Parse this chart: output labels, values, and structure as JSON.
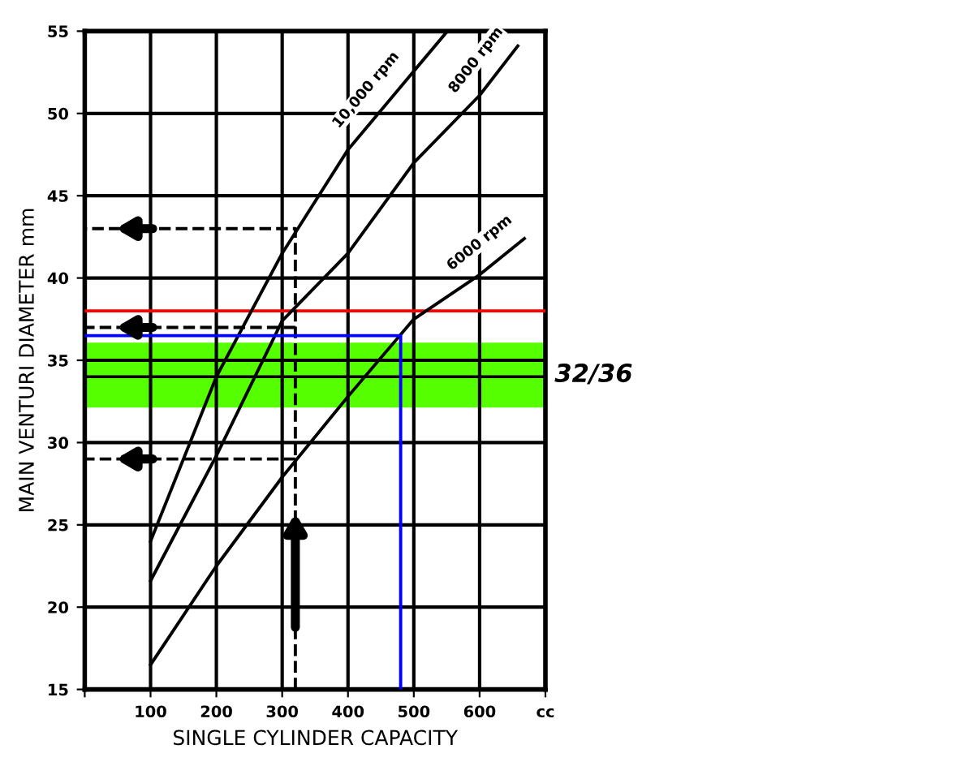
{
  "chart_data": {
    "type": "line",
    "xlabel": "SINGLE CYLINDER CAPACITY",
    "ylabel": "MAIN VENTURI DIAMETER mm",
    "xlim": [
      0,
      700
    ],
    "xticks": [
      {
        "value": 0,
        "label": null
      },
      100,
      200,
      300,
      400,
      500,
      600,
      {
        "value": 700,
        "label": "cc"
      }
    ],
    "ylim": [
      15,
      55
    ],
    "yticks": [
      15,
      20,
      25,
      30,
      35,
      40,
      45,
      50,
      55
    ],
    "grid": true,
    "marker": "none",
    "line_style": "solid",
    "series": [
      {
        "name": "10,000 rpm",
        "color": "#000000",
        "x": [
          100,
          200,
          300,
          400,
          551
        ],
        "values": [
          24,
          34,
          41.5,
          47.8,
          55
        ]
      },
      {
        "name": "8000 rpm",
        "color": "#000000",
        "x": [
          100,
          200,
          300,
          400,
          500,
          600,
          658
        ],
        "values": [
          21.6,
          29.2,
          37.4,
          41.5,
          47,
          51.1,
          54.1
        ]
      },
      {
        "name": "6000 rpm",
        "color": "#000000",
        "x": [
          100,
          200,
          300,
          400,
          500,
          600,
          668
        ],
        "values": [
          16.5,
          22.5,
          27.9,
          32.8,
          37.5,
          40.2,
          42.4
        ]
      },
      {
        "color": "#000000",
        "line_style": "dashed",
        "x": [
          320,
          320,
          0
        ],
        "values": [
          15,
          43,
          43
        ]
      },
      {
        "color": "#000000",
        "line_style": "dashed",
        "x": [
          320,
          0
        ],
        "values": [
          37,
          37
        ]
      },
      {
        "color": "#000000",
        "line_style": "dashed",
        "x": [
          320,
          0
        ],
        "values": [
          29,
          29
        ]
      },
      {
        "color": "#0000ff",
        "x": [
          0,
          480,
          480
        ],
        "values": [
          36.5,
          36.5,
          15
        ]
      }
    ],
    "ref_lines": [
      {
        "axis": "y",
        "value": 38,
        "color": "#ff0000"
      },
      {
        "axis": "y",
        "value": 34,
        "color": "#000000"
      }
    ],
    "bands": [
      {
        "axis": "y",
        "from": 32.2,
        "to": 36,
        "label": "32/36",
        "color": "#55ff00"
      }
    ]
  }
}
